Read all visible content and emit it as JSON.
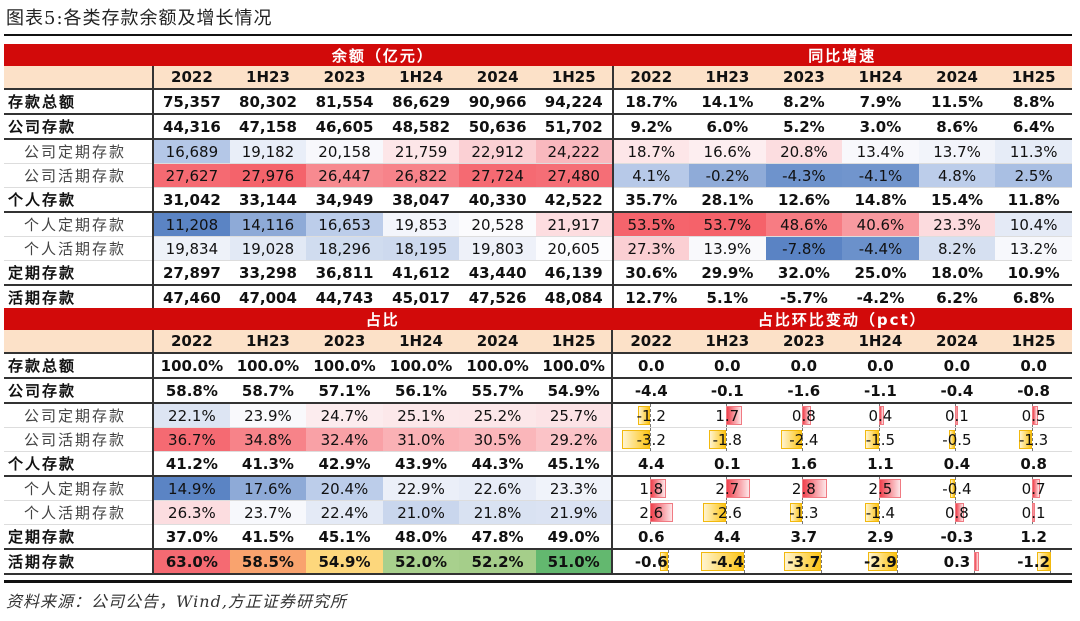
{
  "title": "图表5:各类存款余额及增长情况",
  "source": "资料来源：公司公告，Wind,方正证券研究所",
  "periods": [
    "2022",
    "1H23",
    "2023",
    "1H24",
    "2024",
    "1H25"
  ],
  "table1": {
    "left_header": "余额（亿元）",
    "right_header": "同比增速",
    "rows": [
      {
        "label": "存款总额",
        "type": "bold",
        "balance": [
          "75,357",
          "80,302",
          "81,554",
          "86,629",
          "90,966",
          "94,224"
        ],
        "yoy": [
          "18.7%",
          "14.1%",
          "8.2%",
          "7.9%",
          "11.5%",
          "8.8%"
        ],
        "bal_colors": [],
        "yoy_colors": []
      },
      {
        "label": "公司存款",
        "type": "bold",
        "balance": [
          "44,316",
          "47,158",
          "46,605",
          "48,582",
          "50,636",
          "51,702"
        ],
        "yoy": [
          "9.2%",
          "6.0%",
          "5.2%",
          "3.0%",
          "8.6%",
          "6.4%"
        ],
        "bal_colors": [],
        "yoy_colors": []
      },
      {
        "label": "公司定期存款",
        "type": "sub",
        "balance": [
          "16,689",
          "19,182",
          "20,158",
          "21,759",
          "22,912",
          "24,222"
        ],
        "yoy": [
          "18.7%",
          "16.6%",
          "20.8%",
          "13.4%",
          "13.7%",
          "11.3%"
        ],
        "bal_colors": [
          "#b4c7e7",
          "#e9eef8",
          "#f8f8fc",
          "#fde6e8",
          "#fbd0d4",
          "#f9b8be"
        ],
        "yoy_colors": [
          "#fde6e8",
          "#fdeef0",
          "#fcdde0",
          "#f8f8fc",
          "#f2f4fa",
          "#e6ecf7"
        ]
      },
      {
        "label": "公司活期存款",
        "type": "sub",
        "balance": [
          "27,627",
          "27,976",
          "26,447",
          "26,822",
          "27,724",
          "27,480"
        ],
        "yoy": [
          "4.1%",
          "-0.2%",
          "-4.3%",
          "-4.1%",
          "4.8%",
          "2.5%"
        ],
        "bal_colors": [
          "#f56a72",
          "#f4636b",
          "#f78a90",
          "#f7838a",
          "#f56a72",
          "#f56e76"
        ],
        "yoy_colors": [
          "#b7c9e8",
          "#8fabd8",
          "#6e93cc",
          "#7195cd",
          "#bccdea",
          "#a9bfe3"
        ]
      },
      {
        "label": "个人存款",
        "type": "bold",
        "balance": [
          "31,042",
          "33,144",
          "34,949",
          "38,047",
          "40,330",
          "42,522"
        ],
        "yoy": [
          "35.7%",
          "28.1%",
          "12.6%",
          "14.8%",
          "15.4%",
          "11.8%"
        ],
        "bal_colors": [],
        "yoy_colors": []
      },
      {
        "label": "个人定期存款",
        "type": "sub",
        "balance": [
          "11,208",
          "14,116",
          "16,653",
          "19,853",
          "20,528",
          "21,917"
        ],
        "yoy": [
          "53.5%",
          "53.7%",
          "48.6%",
          "40.6%",
          "23.3%",
          "10.4%"
        ],
        "bal_colors": [
          "#5b84c4",
          "#8eaad7",
          "#bccdea",
          "#f3f5fb",
          "#fbfbfd",
          "#fddde0"
        ],
        "yoy_colors": [
          "#f5646c",
          "#f5626a",
          "#f77c83",
          "#f89aa0",
          "#fcdbde",
          "#e4eaf6"
        ]
      },
      {
        "label": "个人活期存款",
        "type": "sub",
        "balance": [
          "19,834",
          "19,028",
          "18,296",
          "18,195",
          "19,803",
          "20,605"
        ],
        "yoy": [
          "27.3%",
          "13.9%",
          "-7.8%",
          "-4.4%",
          "8.2%",
          "13.2%"
        ],
        "bal_colors": [
          "#eef2f9",
          "#e2e9f5",
          "#d0dcef",
          "#cdd9ee",
          "#eef1f9",
          "#fcfcfe"
        ],
        "yoy_colors": [
          "#fbcfd3",
          "#f9f9fc",
          "#5a83c4",
          "#6b91cb",
          "#d6e0f1",
          "#f7f8fc"
        ]
      },
      {
        "label": "定期存款",
        "type": "bold",
        "balance": [
          "27,897",
          "33,298",
          "36,811",
          "41,612",
          "43,440",
          "46,139"
        ],
        "yoy": [
          "30.6%",
          "29.9%",
          "32.0%",
          "25.0%",
          "18.0%",
          "10.9%"
        ],
        "bal_colors": [],
        "yoy_colors": []
      },
      {
        "label": "活期存款",
        "type": "bold",
        "balance": [
          "47,460",
          "47,004",
          "44,743",
          "45,017",
          "47,526",
          "48,084"
        ],
        "yoy": [
          "12.7%",
          "5.1%",
          "-5.7%",
          "-4.2%",
          "6.2%",
          "6.8%"
        ],
        "bal_colors": [],
        "yoy_colors": []
      }
    ]
  },
  "table2": {
    "left_header": "占比",
    "right_header": "占比环比变动（pct）",
    "rows": [
      {
        "label": "存款总额",
        "type": "bold",
        "share": [
          "100.0%",
          "100.0%",
          "100.0%",
          "100.0%",
          "100.0%",
          "100.0%"
        ],
        "change": [
          "0.0",
          "0.0",
          "0.0",
          "0.0",
          "0.0",
          "0.0"
        ],
        "share_colors": [],
        "bars": []
      },
      {
        "label": "公司存款",
        "type": "bold",
        "share": [
          "58.8%",
          "58.7%",
          "57.1%",
          "56.1%",
          "55.7%",
          "54.9%"
        ],
        "change": [
          "-4.4",
          "-0.1",
          "-1.6",
          "-1.1",
          "-0.4",
          "-0.8"
        ],
        "share_colors": [],
        "bars": []
      },
      {
        "label": "公司定期存款",
        "type": "sub",
        "share": [
          "22.1%",
          "23.9%",
          "24.7%",
          "25.1%",
          "25.2%",
          "25.7%"
        ],
        "change": [
          "-1.2",
          "1.7",
          "0.8",
          "0.4",
          "0.1",
          "0.5"
        ],
        "share_colors": [
          "#dde5f3",
          "#f9f9fc",
          "#fcecee",
          "#fce8ea",
          "#fce7e9",
          "#fce3e6"
        ],
        "bars": [
          -1.2,
          1.7,
          0.8,
          0.4,
          0.1,
          0.5
        ]
      },
      {
        "label": "公司活期存款",
        "type": "sub",
        "share": [
          "36.7%",
          "34.8%",
          "32.4%",
          "31.0%",
          "30.5%",
          "29.2%"
        ],
        "change": [
          "-3.2",
          "-1.8",
          "-2.4",
          "-1.5",
          "-0.5",
          "-1.3"
        ],
        "share_colors": [
          "#f56a72",
          "#f78389",
          "#f9a1a6",
          "#fab1b5",
          "#fab6ba",
          "#fbc3c7"
        ],
        "bars": [
          -3.2,
          -1.8,
          -2.4,
          -1.5,
          -0.5,
          -1.3
        ]
      },
      {
        "label": "个人存款",
        "type": "bold",
        "share": [
          "41.2%",
          "41.3%",
          "42.9%",
          "43.9%",
          "44.3%",
          "45.1%"
        ],
        "change": [
          "4.4",
          "0.1",
          "1.6",
          "1.1",
          "0.4",
          "0.8"
        ],
        "share_colors": [],
        "bars": []
      },
      {
        "label": "个人定期存款",
        "type": "sub",
        "share": [
          "14.9%",
          "17.6%",
          "20.4%",
          "22.9%",
          "22.6%",
          "23.3%"
        ],
        "change": [
          "1.8",
          "2.7",
          "2.8",
          "2.5",
          "-0.4",
          "0.7"
        ],
        "share_colors": [
          "#5b84c4",
          "#8eaad7",
          "#bccdea",
          "#ebeff8",
          "#e7ecf7",
          "#f0f3fa"
        ],
        "bars": [
          1.8,
          2.7,
          2.8,
          2.5,
          -0.4,
          0.7
        ]
      },
      {
        "label": "个人活期存款",
        "type": "sub",
        "share": [
          "26.3%",
          "23.7%",
          "22.4%",
          "21.0%",
          "21.8%",
          "21.9%"
        ],
        "change": [
          "2.6",
          "-2.6",
          "-1.3",
          "-1.4",
          "0.8",
          "0.1"
        ],
        "share_colors": [
          "#fcdde0",
          "#f7f8fc",
          "#e4eaf6",
          "#c9d6ed",
          "#d9e2f2",
          "#dbe3f3"
        ],
        "bars": [
          2.6,
          -2.6,
          -1.3,
          -1.4,
          0.8,
          0.1
        ]
      },
      {
        "label": "定期存款",
        "type": "bold",
        "share": [
          "37.0%",
          "41.5%",
          "45.1%",
          "48.0%",
          "47.8%",
          "49.0%"
        ],
        "change": [
          "0.6",
          "4.4",
          "3.7",
          "2.9",
          "-0.3",
          "1.2"
        ],
        "share_colors": [],
        "bars": []
      },
      {
        "label": "活期存款",
        "type": "bold",
        "share": [
          "63.0%",
          "58.5%",
          "54.9%",
          "52.0%",
          "52.2%",
          "51.0%"
        ],
        "change": [
          "-0.6",
          "-4.4",
          "-3.7",
          "-2.9",
          "0.3",
          "-1.2"
        ],
        "share_colors": [
          "#f56a72",
          "#f9a36e",
          "#fdd77c",
          "#a8d08d",
          "#a5ce8a",
          "#63b86f"
        ],
        "bars": [
          -0.6,
          -4.4,
          -3.7,
          -2.9,
          0.3,
          -1.2
        ]
      }
    ]
  }
}
